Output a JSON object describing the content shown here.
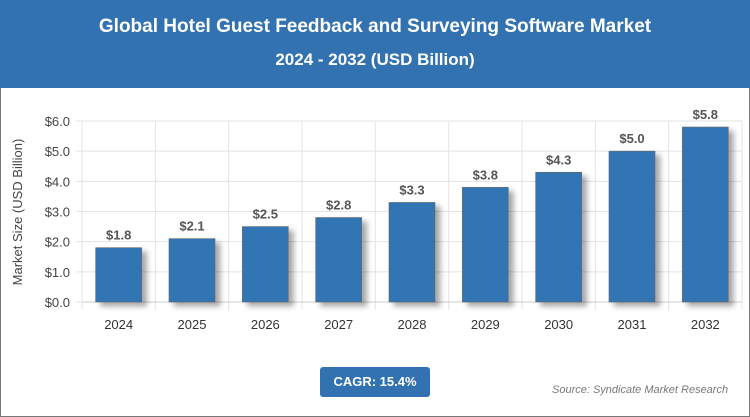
{
  "header": {
    "title": "Global Hotel Guest Feedback and Surveying Software Market",
    "subtitle": "2024 - 2032 (USD Billion)"
  },
  "chart_data": {
    "type": "bar",
    "title": "Global Hotel Guest Feedback and Surveying Software Market 2024 - 2032 (USD Billion)",
    "categories": [
      "2024",
      "2025",
      "2026",
      "2027",
      "2028",
      "2029",
      "2030",
      "2031",
      "2032"
    ],
    "values": [
      1.8,
      2.1,
      2.5,
      2.8,
      3.3,
      3.8,
      4.3,
      5.0,
      5.8
    ],
    "data_labels": [
      "$1.8",
      "$2.1",
      "$2.5",
      "$2.8",
      "$3.3",
      "$3.8",
      "$4.3",
      "$5.0",
      "$5.8"
    ],
    "xlabel": "",
    "ylabel": "Market Size (USD Billion)",
    "ylim": [
      0,
      6
    ],
    "yticks": [
      "$0.0",
      "$1.0",
      "$2.0",
      "$3.0",
      "$4.0",
      "$5.0",
      "$6.0"
    ],
    "grid": true,
    "bar_color": "#3274b4"
  },
  "footer": {
    "cagr": "CAGR: 15.4%",
    "source": "Source: Syndicate Market Research"
  }
}
